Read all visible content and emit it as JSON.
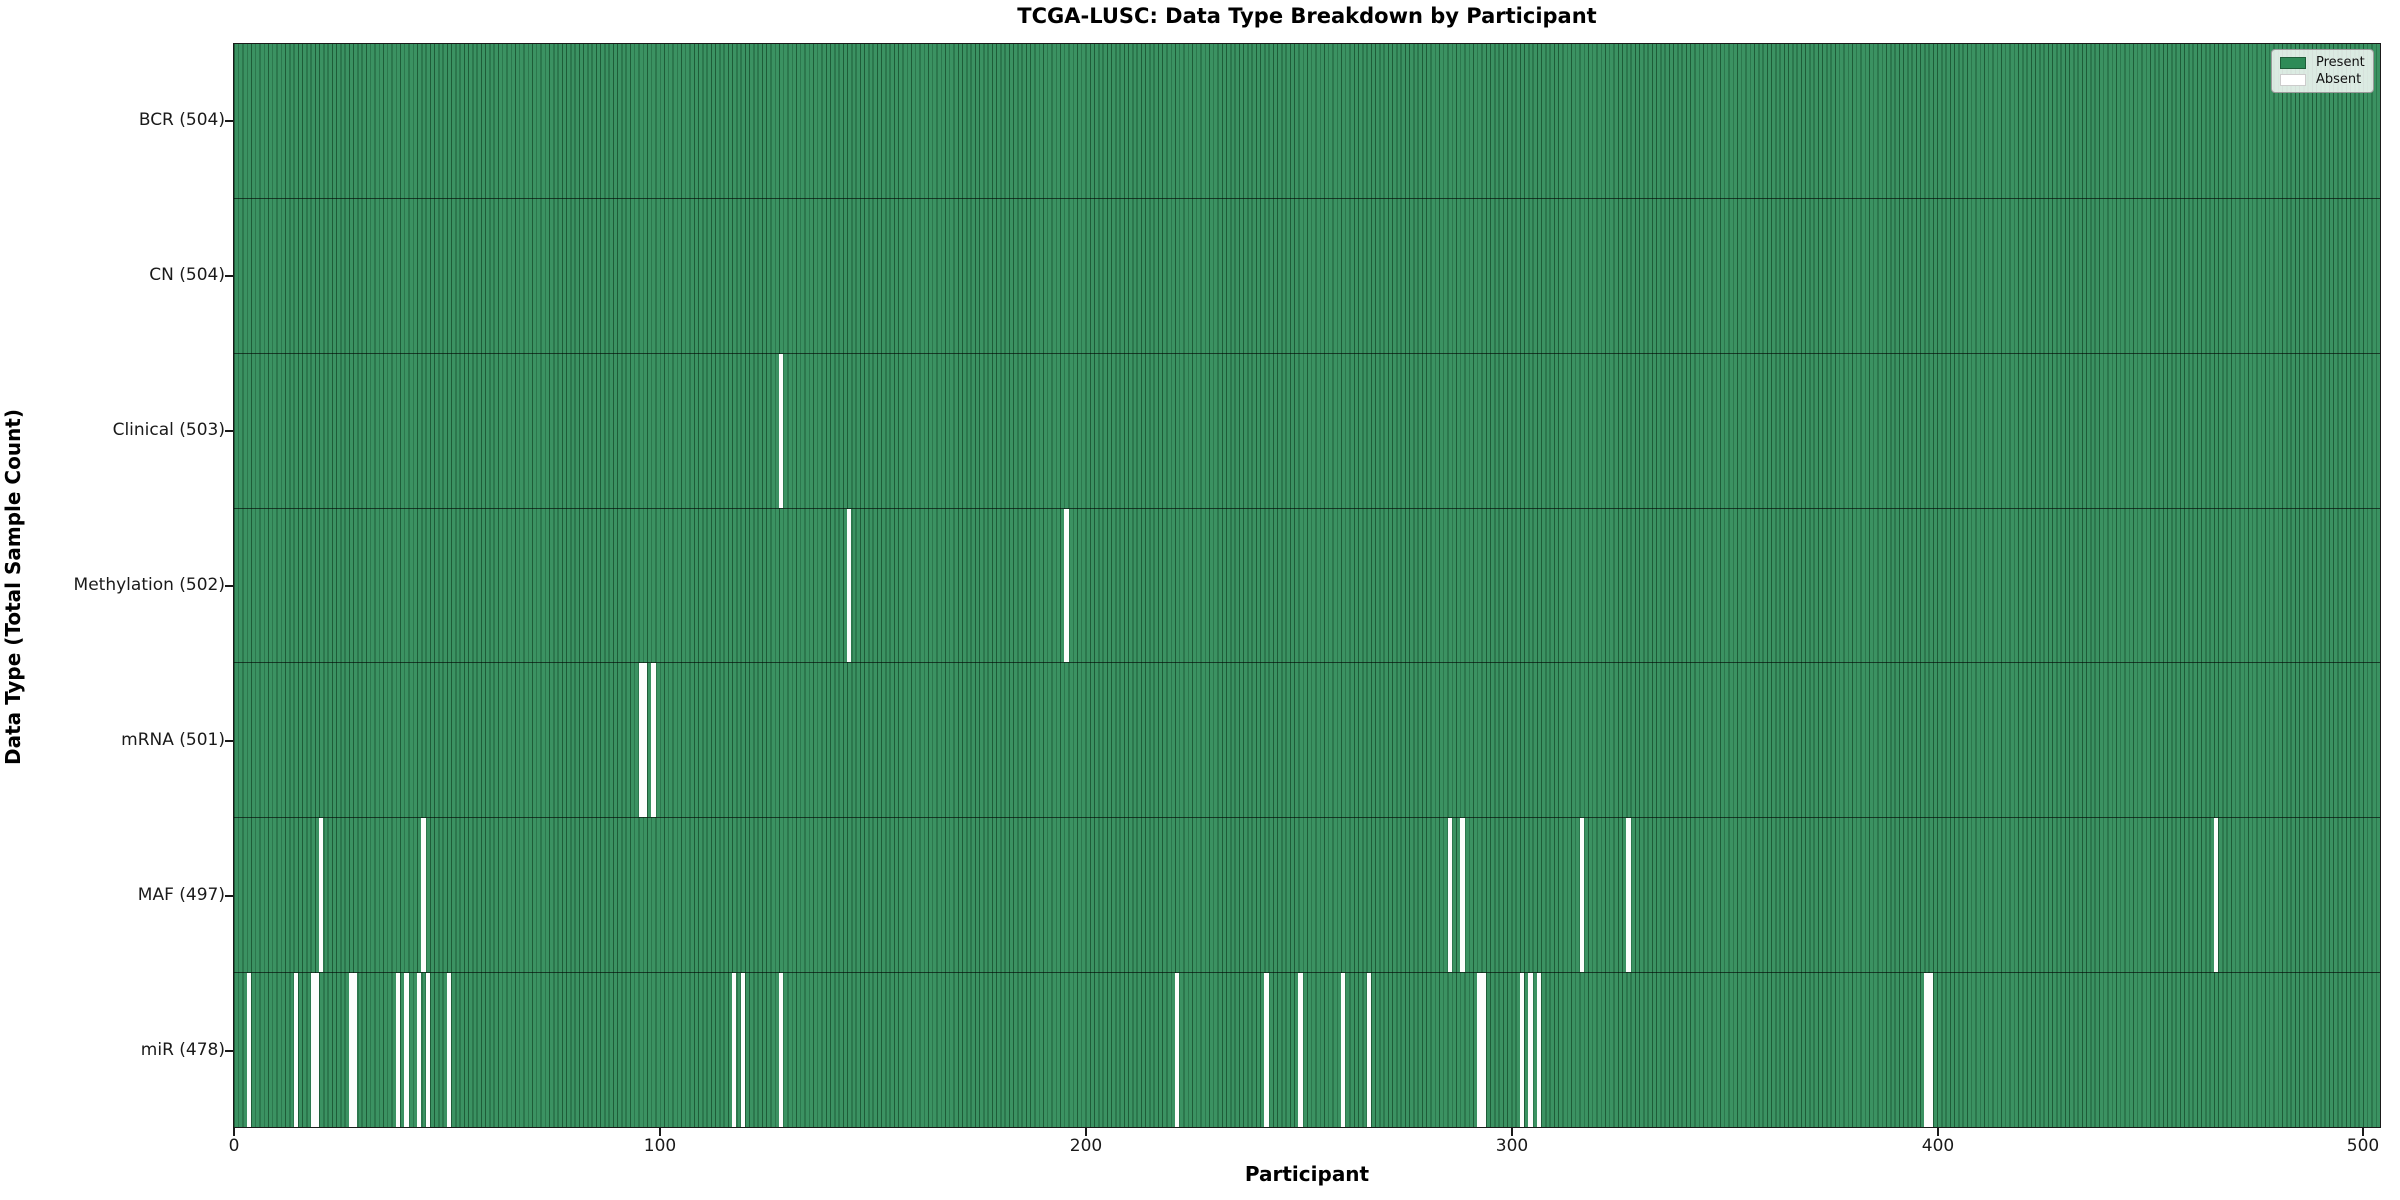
{
  "title": "TCGA-LUSC: Data Type Breakdown by Participant",
  "axes": {
    "xlabel": "Participant",
    "ylabel": "Data Type (Total Sample Count)"
  },
  "colors": {
    "present_fill": "#3b9262",
    "present_base": "#2E8B57",
    "bar_edge": "#1e5c38",
    "absent_fill": "#ffffff",
    "spine": "#1a1a1a",
    "legend_bg": "rgba(255,255,255,0.82)"
  },
  "legend": {
    "entries": [
      {
        "label": "Present",
        "color": "#2E8B57"
      },
      {
        "label": "Absent",
        "color": "#ffffff"
      }
    ],
    "position": "upper right"
  },
  "chart_data": {
    "type": "heatmap",
    "title": "TCGA-LUSC: Data Type Breakdown by Participant",
    "xlabel": "Participant",
    "ylabel": "Data Type (Total Sample Count)",
    "n_participants": 504,
    "x_range": [
      0,
      504
    ],
    "x_tick_values": [
      0,
      100,
      200,
      300,
      400,
      500
    ],
    "x_tick_labels": [
      "0",
      "100",
      "200",
      "300",
      "400",
      "500"
    ],
    "grid": false,
    "legend_entries": [
      "Present",
      "Absent"
    ],
    "legend_position": "upper right",
    "rows": [
      {
        "label": "BCR (504)",
        "data_type": "BCR",
        "total_samples": 504,
        "absent_count": 0,
        "absent_participants": []
      },
      {
        "label": "CN (504)",
        "data_type": "CN",
        "total_samples": 504,
        "absent_count": 0,
        "absent_participants": []
      },
      {
        "label": "Clinical (503)",
        "data_type": "Clinical",
        "total_samples": 503,
        "absent_count": 1,
        "absent_participants": [
          128
        ]
      },
      {
        "label": "Methylation (502)",
        "data_type": "Methylation",
        "total_samples": 502,
        "absent_count": 2,
        "absent_participants": [
          144,
          195
        ]
      },
      {
        "label": "mRNA (501)",
        "data_type": "mRNA",
        "total_samples": 501,
        "absent_count": 3,
        "absent_participants": [
          95,
          96,
          98
        ]
      },
      {
        "label": "MAF (497)",
        "data_type": "MAF",
        "total_samples": 497,
        "absent_count": 7,
        "absent_participants": [
          20,
          44,
          285,
          288,
          316,
          327,
          465
        ]
      },
      {
        "label": "miR (478)",
        "data_type": "miR",
        "total_samples": 478,
        "absent_count": 26,
        "absent_participants": [
          3,
          14,
          18,
          19,
          27,
          28,
          38,
          40,
          43,
          45,
          50,
          117,
          119,
          128,
          221,
          242,
          250,
          260,
          266,
          292,
          293,
          302,
          304,
          306,
          397,
          398
        ]
      }
    ]
  }
}
